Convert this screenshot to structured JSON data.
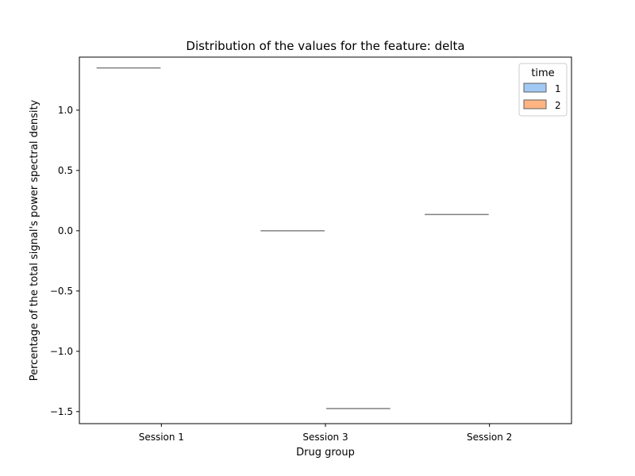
{
  "chart_data": {
    "type": "box",
    "title": "Distribution of the values for the feature: delta",
    "xlabel": "Drug group",
    "ylabel": "Percentage of the total signal's power spectral density",
    "categories": [
      "Session 1",
      "Session 3",
      "Session 2"
    ],
    "ylim": [
      -1.6,
      1.44
    ],
    "yticks": [
      -1.5,
      -1.0,
      -0.5,
      0.0,
      0.5,
      1.0
    ],
    "ytick_labels": [
      "−1.5",
      "−1.0",
      "−0.5",
      "0.0",
      "0.5",
      "1.0"
    ],
    "grid": false,
    "legend": {
      "title": "time",
      "placement": "top-right",
      "entries": [
        {
          "label": "1",
          "color": "#a1c9f4"
        },
        {
          "label": "2",
          "color": "#ffb482"
        }
      ]
    },
    "series": [
      {
        "name": "1",
        "values": [
          1.35,
          0.0,
          0.135
        ]
      },
      {
        "name": "2",
        "values": [
          null,
          -1.475,
          null
        ]
      }
    ],
    "median_line_color": "#808080"
  }
}
